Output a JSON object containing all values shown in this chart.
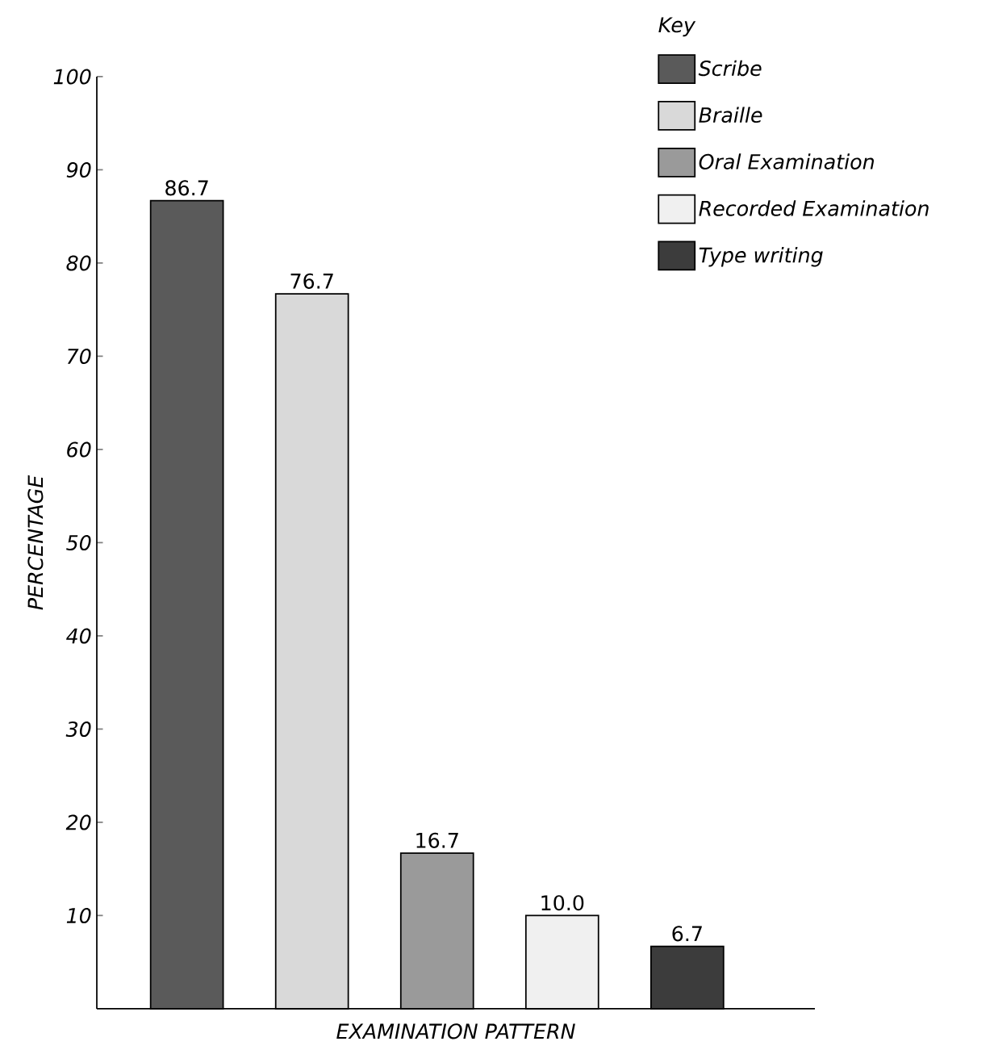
{
  "chart_data": {
    "type": "bar",
    "xlabel": "EXAMINATION PATTERN",
    "ylabel": "PERCENTAGE",
    "legend_title": "Key",
    "legend": "top right",
    "categories": [
      null,
      null,
      null,
      null,
      null
    ],
    "ylim": [
      0,
      100
    ],
    "yticks": [
      10,
      20,
      30,
      40,
      50,
      60,
      70,
      80,
      90,
      100
    ],
    "series": [
      {
        "name": "Scribe",
        "color": "#5a5a5a",
        "values": [
          86.7,
          null,
          null,
          null,
          null
        ],
        "value_labels": [
          "86.7",
          null,
          null,
          null,
          null
        ]
      },
      {
        "name": "Braille",
        "color": "#d9d9d9",
        "values": [
          null,
          76.7,
          null,
          null,
          null
        ],
        "value_labels": [
          null,
          "76.7",
          null,
          null,
          null
        ]
      },
      {
        "name": "Oral Examination",
        "color": "#9a9a9a",
        "values": [
          null,
          null,
          16.7,
          null,
          null
        ],
        "value_labels": [
          null,
          null,
          "16.7",
          null,
          null
        ]
      },
      {
        "name": "Recorded Examination",
        "color": "#f0f0f0",
        "values": [
          null,
          null,
          null,
          10.0,
          null
        ],
        "value_labels": [
          null,
          null,
          null,
          "10.0",
          null
        ]
      },
      {
        "name": "Type writing",
        "color": "#3c3c3c",
        "values": [
          null,
          null,
          null,
          null,
          6.7
        ],
        "value_labels": [
          null,
          null,
          null,
          null,
          "6.7"
        ]
      }
    ]
  }
}
